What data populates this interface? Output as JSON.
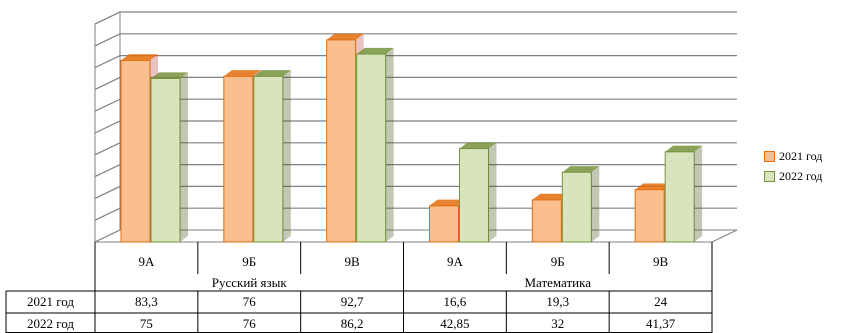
{
  "chart_data": {
    "type": "bar",
    "groups": [
      {
        "label": "Русский язык",
        "categories": [
          "9А",
          "9Б",
          "9В"
        ]
      },
      {
        "label": "Математика",
        "categories": [
          "9А",
          "9Б",
          "9В"
        ]
      }
    ],
    "categories": [
      "9А",
      "9Б",
      "9В",
      "9А",
      "9Б",
      "9В"
    ],
    "series": [
      {
        "name": "2021 год",
        "values": [
          83.3,
          76,
          92.7,
          16.6,
          19.3,
          24
        ],
        "labels": [
          "83,3",
          "76",
          "92,7",
          "16,6",
          "19,3",
          "24"
        ],
        "color": "#fabf8f",
        "edge": "#e46c0a"
      },
      {
        "name": "2022 год",
        "values": [
          75,
          76,
          86.2,
          42.85,
          32,
          41.37
        ],
        "labels": [
          "75",
          "76",
          "86,2",
          "42,85",
          "32",
          "41,37"
        ],
        "color": "#d7e4bd",
        "edge": "#77933c"
      }
    ],
    "ylim": [
      0,
      100
    ],
    "gridlines": 10,
    "grid": true,
    "legend": "right",
    "data_table": true
  }
}
